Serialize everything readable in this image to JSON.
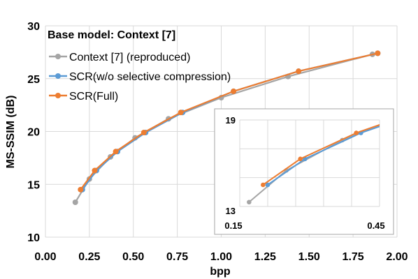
{
  "chart_data": {
    "type": "line",
    "title": "Base model: Context [7]",
    "xlabel": "bpp",
    "ylabel": "MS-SSIM (dB)",
    "xlim": [
      0,
      2
    ],
    "ylim": [
      10,
      30
    ],
    "x_ticks": [
      "0.00",
      "0.25",
      "0.50",
      "0.75",
      "1.00",
      "1.25",
      "1.50",
      "1.75",
      "2.00"
    ],
    "y_ticks": [
      "10",
      "15",
      "20",
      "25",
      "30"
    ],
    "grid": true,
    "legend_position": "top-left",
    "series": [
      {
        "name": "Context [7] (reproduced)",
        "color": "#a5a5a5",
        "x": [
          0.17,
          0.25,
          0.37,
          0.51,
          0.7,
          1.0,
          1.38,
          1.86
        ],
        "y": [
          13.3,
          15.5,
          17.6,
          19.4,
          21.2,
          23.2,
          25.2,
          27.3
        ]
      },
      {
        "name": "SCR(w/o selective compression)",
        "color": "#5b9bd5",
        "x": [
          0.21,
          0.29,
          0.41,
          0.57,
          0.78,
          1.07,
          1.44,
          1.89
        ],
        "y": [
          14.5,
          16.3,
          18.1,
          19.9,
          21.8,
          23.8,
          25.7,
          27.4
        ]
      },
      {
        "name": "SCR(Full)",
        "color": "#ed7d31",
        "x": [
          0.2,
          0.28,
          0.4,
          0.56,
          0.77,
          1.07,
          1.44,
          1.89
        ],
        "y": [
          14.5,
          16.3,
          18.1,
          19.9,
          21.8,
          23.8,
          25.7,
          27.4
        ]
      }
    ],
    "inset": {
      "xlim": [
        0.15,
        0.45
      ],
      "ylim": [
        13,
        19
      ],
      "x_tick_labels": [
        "0.15",
        "0.45"
      ],
      "y_tick_labels": [
        "19",
        "13"
      ]
    }
  }
}
